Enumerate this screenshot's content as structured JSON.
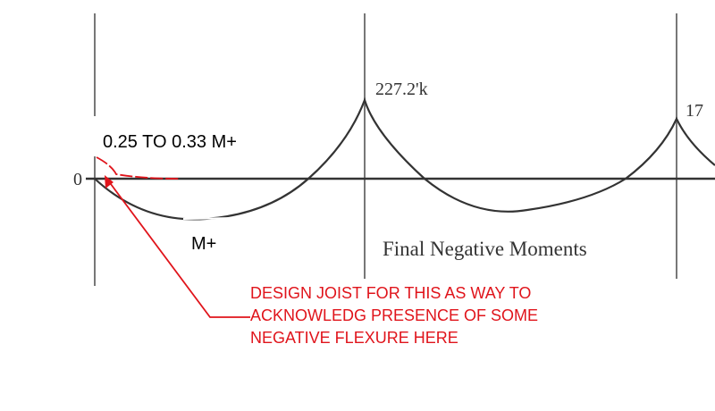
{
  "diagram": {
    "axis_zero_label": "0",
    "peak_labels": [
      "227.2'k",
      "17"
    ],
    "caption": "Final Negative Moments",
    "positive_moment_label": "M+",
    "negative_moment_note": "0.25 TO 0.33 M+",
    "design_note": [
      "DESIGN JOIST FOR THIS AS WAY TO",
      "ACKNOWLEDG PRESENCE OF SOME",
      "NEGATIVE FLEXURE HERE"
    ]
  }
}
